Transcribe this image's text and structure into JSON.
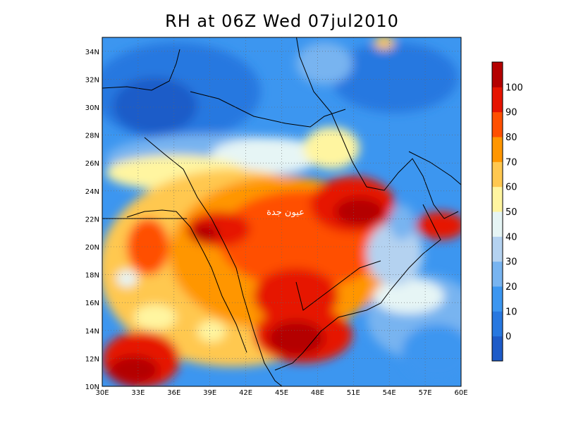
{
  "title": "RH at 06Z Wed 07jul2010",
  "watermark_text": "عيون جدة",
  "map": {
    "lon_range": [
      30,
      60
    ],
    "lat_range": [
      10,
      35
    ],
    "x_ticks": [
      "30E",
      "33E",
      "36E",
      "39E",
      "42E",
      "45E",
      "48E",
      "51E",
      "54E",
      "57E",
      "60E"
    ],
    "y_ticks": [
      "10N",
      "12N",
      "14N",
      "16N",
      "18N",
      "20N",
      "22N",
      "24N",
      "26N",
      "28N",
      "30N",
      "32N",
      "34N"
    ],
    "grid": true
  },
  "colorbar": {
    "labels": [
      "0",
      "10",
      "20",
      "30",
      "40",
      "50",
      "60",
      "70",
      "80",
      "90",
      "100"
    ],
    "colors": [
      "#1e5bc8",
      "#2878e0",
      "#3c96f0",
      "#78b4f0",
      "#b4d2f0",
      "#e6f5f5",
      "#fff5a0",
      "#ffc850",
      "#ff9600",
      "#ff5000",
      "#e61400",
      "#b40000"
    ]
  }
}
